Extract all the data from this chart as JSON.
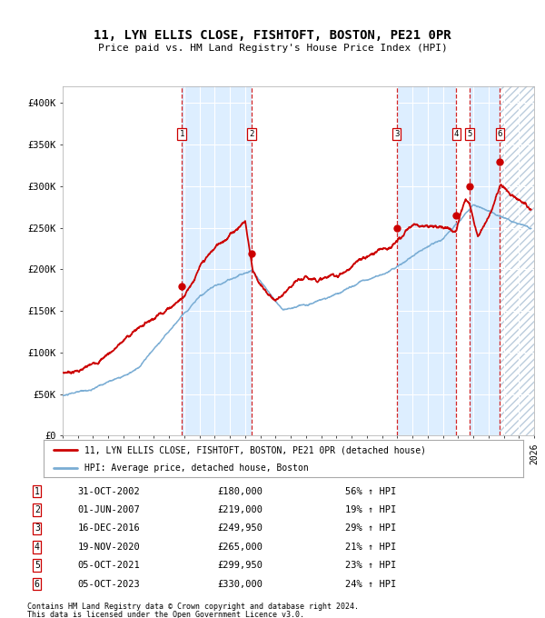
{
  "title": "11, LYN ELLIS CLOSE, FISHTOFT, BOSTON, PE21 0PR",
  "subtitle": "Price paid vs. HM Land Registry's House Price Index (HPI)",
  "legend_line1": "11, LYN ELLIS CLOSE, FISHTOFT, BOSTON, PE21 0PR (detached house)",
  "legend_line2": "HPI: Average price, detached house, Boston",
  "footer1": "Contains HM Land Registry data © Crown copyright and database right 2024.",
  "footer2": "This data is licensed under the Open Government Licence v3.0.",
  "sales": [
    {
      "num": 1,
      "date_str": "31-OCT-2002",
      "date_x": 2002.83,
      "price": 180000,
      "pct": "56%",
      "dir": "↑"
    },
    {
      "num": 2,
      "date_str": "01-JUN-2007",
      "date_x": 2007.42,
      "price": 219000,
      "pct": "19%",
      "dir": "↑"
    },
    {
      "num": 3,
      "date_str": "16-DEC-2016",
      "date_x": 2016.96,
      "price": 249950,
      "pct": "29%",
      "dir": "↑"
    },
    {
      "num": 4,
      "date_str": "19-NOV-2020",
      "date_x": 2020.88,
      "price": 265000,
      "pct": "21%",
      "dir": "↑"
    },
    {
      "num": 5,
      "date_str": "05-OCT-2021",
      "date_x": 2021.76,
      "price": 299950,
      "pct": "23%",
      "dir": "↑"
    },
    {
      "num": 6,
      "date_str": "05-OCT-2023",
      "date_x": 2023.76,
      "price": 330000,
      "pct": "24%",
      "dir": "↑"
    }
  ],
  "xmin": 1995.0,
  "xmax": 2026.0,
  "ymin": 0,
  "ymax": 420000,
  "yticks": [
    0,
    50000,
    100000,
    150000,
    200000,
    250000,
    300000,
    350000,
    400000
  ],
  "ylabels": [
    "£0",
    "£50K",
    "£100K",
    "£150K",
    "£200K",
    "£250K",
    "£300K",
    "£350K",
    "£400K"
  ],
  "red_color": "#cc0000",
  "blue_color": "#7aadd4",
  "bg_shade_color": "#ddeeff",
  "grid_color": "#ffffff",
  "hatch_color": "#bbccdd",
  "fig_width": 6.0,
  "fig_height": 6.8
}
